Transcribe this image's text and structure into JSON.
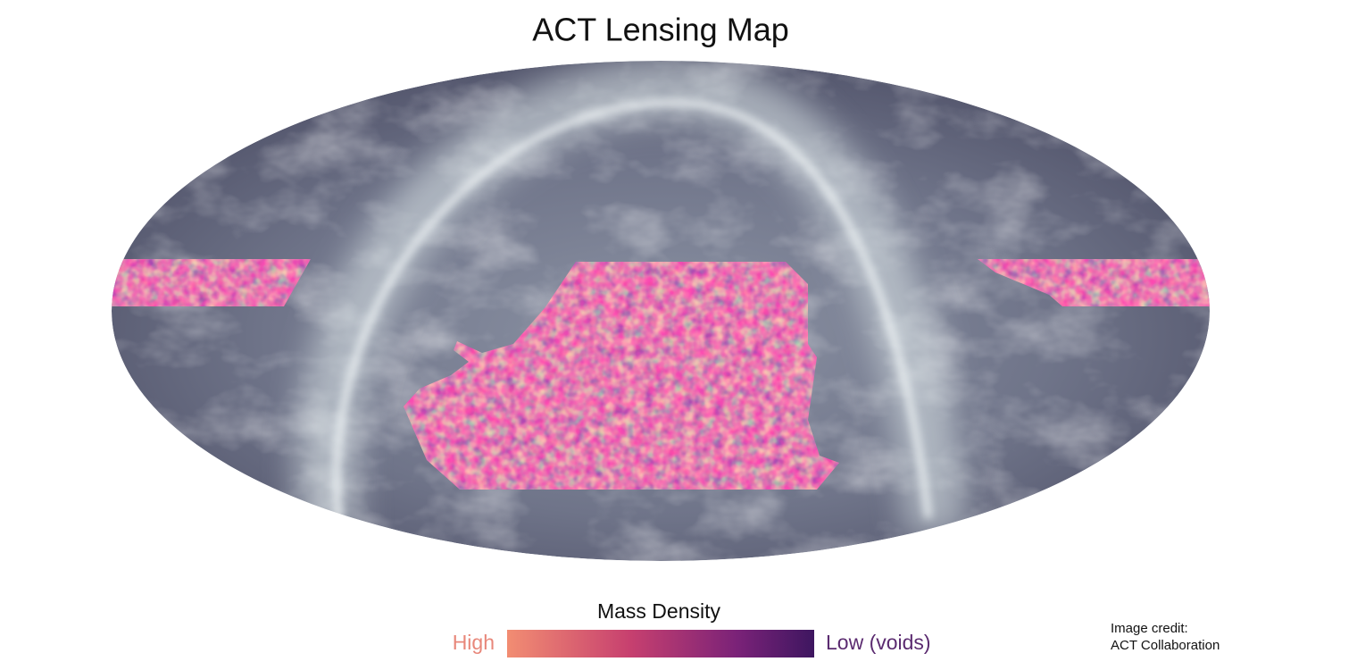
{
  "title": "ACT Lensing Map",
  "legend": {
    "title": "Mass Density",
    "high_label": "High",
    "low_label": "Low (voids)"
  },
  "credit": {
    "line1": "Image credit:",
    "line2": "ACT Collaboration"
  }
}
